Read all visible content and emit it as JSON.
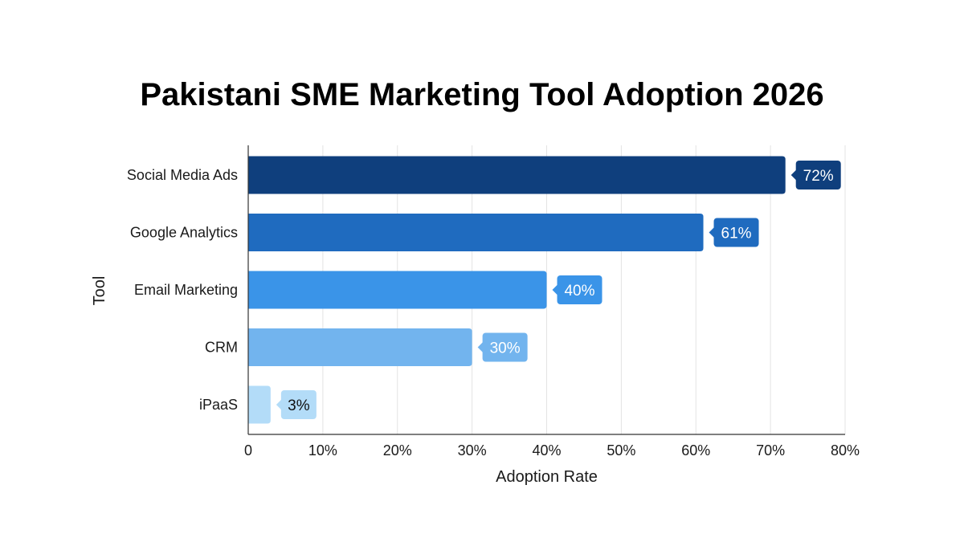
{
  "chart_data": {
    "type": "bar",
    "orientation": "horizontal",
    "title": "Pakistani SME Marketing Tool Adoption 2026",
    "xlabel": "Adoption Rate",
    "ylabel": "Tool",
    "xlim": [
      0,
      80
    ],
    "x_ticks": [
      0,
      10,
      20,
      30,
      40,
      50,
      60,
      70,
      80
    ],
    "x_tick_labels": [
      "0",
      "10%",
      "20%",
      "30%",
      "40%",
      "50%",
      "60%",
      "70%",
      "80%"
    ],
    "grid": true,
    "categories": [
      "Social Media Ads",
      "Google Analytics",
      "Email Marketing",
      "CRM",
      "iPaaS"
    ],
    "values": [
      72,
      61,
      40,
      30,
      3
    ],
    "data_labels": [
      "72%",
      "61%",
      "40%",
      "30%",
      "3%"
    ],
    "bar_colors": [
      "#0f3f7d",
      "#1f6bbf",
      "#3a94e8",
      "#72b4ee",
      "#b3dcf8"
    ],
    "label_text_colors": [
      "#ffffff",
      "#ffffff",
      "#ffffff",
      "#ffffff",
      "#111111"
    ]
  }
}
